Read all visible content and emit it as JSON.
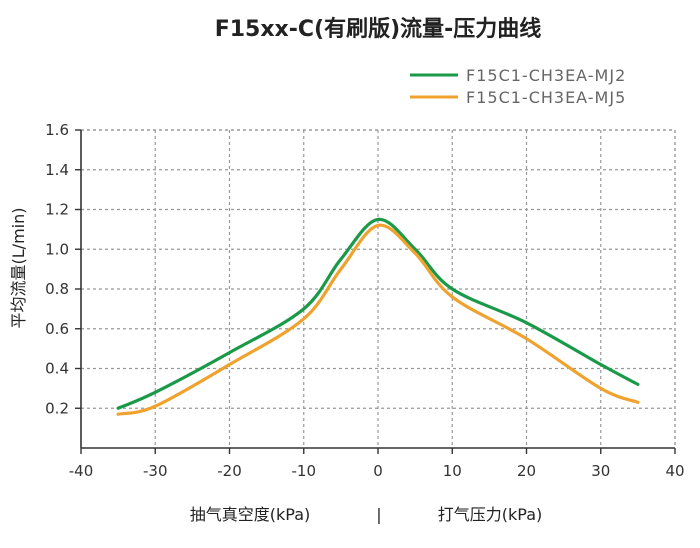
{
  "chart_data": {
    "type": "line",
    "title": "F15xx-C(有刷版)流量-压力曲线",
    "ylabel": "平均流量(L/min)",
    "xlabel_left": "抽气真空度(kPa)",
    "xlabel_separator": "|",
    "xlabel_right": "打气压力(kPa)",
    "xlim": [
      -40,
      40
    ],
    "ylim": [
      0,
      1.6
    ],
    "x_ticks": [
      -40,
      -30,
      -20,
      -10,
      0,
      10,
      20,
      30,
      40
    ],
    "x_tick_labels": [
      "-40",
      "-30",
      "-20",
      "-10",
      "0",
      "10",
      "20",
      "30",
      "40"
    ],
    "y_ticks": [
      0.2,
      0.4,
      0.6,
      0.8,
      1.0,
      1.2,
      1.4,
      1.6
    ],
    "y_tick_labels": [
      "0.2",
      "0.4",
      "0.6",
      "0.8",
      "1.0",
      "1.2",
      "1.4",
      "1.6"
    ],
    "grid": true,
    "legend_position": "top-right",
    "series": [
      {
        "name": "F15C1-CH3EA-MJ2",
        "color": "#1a9a48",
        "x": [
          -35,
          -30,
          -20,
          -10,
          -5,
          0,
          5,
          10,
          20,
          30,
          35
        ],
        "y": [
          0.2,
          0.28,
          0.48,
          0.7,
          0.95,
          1.15,
          1.0,
          0.8,
          0.63,
          0.42,
          0.32
        ]
      },
      {
        "name": "F15C1-CH3EA-MJ5",
        "color": "#f0a22e",
        "x": [
          -35,
          -30,
          -20,
          -10,
          -5,
          0,
          5,
          10,
          20,
          30,
          35
        ],
        "y": [
          0.17,
          0.21,
          0.42,
          0.65,
          0.9,
          1.12,
          0.98,
          0.76,
          0.55,
          0.3,
          0.23
        ]
      }
    ]
  }
}
